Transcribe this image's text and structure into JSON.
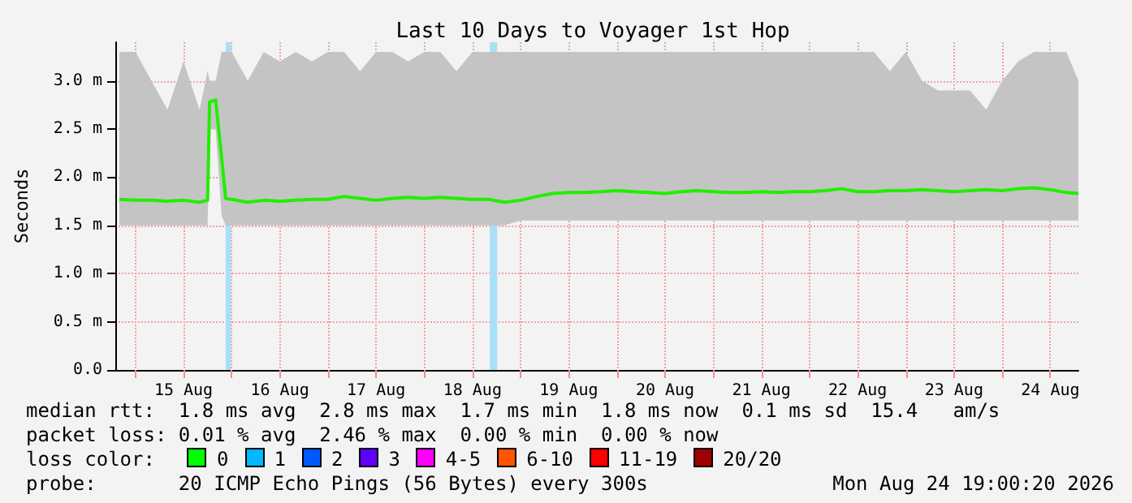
{
  "chart_data": {
    "type": "line",
    "title": "Last 10 Days to Voyager 1st Hop",
    "ylabel": "Seconds",
    "xlim": [
      "2026-08-14T19:00",
      "2026-08-24T19:00"
    ],
    "xticks": [
      {
        "value": "2026-08-15T00:00",
        "label": null
      },
      {
        "value": "2026-08-15T12:00",
        "label": "15 Aug"
      },
      {
        "value": "2026-08-16T00:00",
        "label": null
      },
      {
        "value": "2026-08-16T12:00",
        "label": "16 Aug"
      },
      {
        "value": "2026-08-17T00:00",
        "label": null
      },
      {
        "value": "2026-08-17T12:00",
        "label": "17 Aug"
      },
      {
        "value": "2026-08-18T00:00",
        "label": null
      },
      {
        "value": "2026-08-18T12:00",
        "label": "18 Aug"
      },
      {
        "value": "2026-08-19T00:00",
        "label": null
      },
      {
        "value": "2026-08-19T12:00",
        "label": "19 Aug"
      },
      {
        "value": "2026-08-20T00:00",
        "label": null
      },
      {
        "value": "2026-08-20T12:00",
        "label": "20 Aug"
      },
      {
        "value": "2026-08-21T00:00",
        "label": null
      },
      {
        "value": "2026-08-21T12:00",
        "label": "21 Aug"
      },
      {
        "value": "2026-08-22T00:00",
        "label": null
      },
      {
        "value": "2026-08-22T12:00",
        "label": "22 Aug"
      },
      {
        "value": "2026-08-23T00:00",
        "label": null
      },
      {
        "value": "2026-08-23T12:00",
        "label": "23 Aug"
      },
      {
        "value": "2026-08-24T00:00",
        "label": null
      },
      {
        "value": "2026-08-24T12:00",
        "label": "24 Aug"
      }
    ],
    "ylim": [
      0,
      3.4
    ],
    "yticks": [
      {
        "value": 0,
        "label": "0.0"
      },
      {
        "value": 0.5,
        "label": "0.5 m"
      },
      {
        "value": 1,
        "label": "1.0 m"
      },
      {
        "value": 1.5,
        "label": "1.5 m"
      },
      {
        "value": 2,
        "label": "2.0 m"
      },
      {
        "value": 2.5,
        "label": "2.5 m"
      },
      {
        "value": 3,
        "label": "3.0 m"
      }
    ],
    "grid": true,
    "marker": "none",
    "line_style": "solid",
    "series": [
      {
        "color": "#22ee00",
        "x": [
          "2026-08-14T20:00",
          "2026-08-15T00:00",
          "2026-08-15T04:00",
          "2026-08-15T08:00",
          "2026-08-15T12:00",
          "2026-08-15T16:00",
          "2026-08-15T18:00",
          "2026-08-15T18:30",
          "2026-08-15T20:00",
          "2026-08-15T21:30",
          "2026-08-15T22:30",
          "2026-08-16T00:00",
          "2026-08-16T04:00",
          "2026-08-16T08:00",
          "2026-08-16T12:00",
          "2026-08-16T16:00",
          "2026-08-16T20:00",
          "2026-08-17T00:00",
          "2026-08-17T04:00",
          "2026-08-17T08:00",
          "2026-08-17T12:00",
          "2026-08-17T16:00",
          "2026-08-17T20:00",
          "2026-08-18T00:00",
          "2026-08-18T04:00",
          "2026-08-18T08:00",
          "2026-08-18T12:00",
          "2026-08-18T16:00",
          "2026-08-18T20:00",
          "2026-08-19T00:00",
          "2026-08-19T04:00",
          "2026-08-19T08:00",
          "2026-08-19T12:00",
          "2026-08-19T16:00",
          "2026-08-19T20:00",
          "2026-08-20T00:00",
          "2026-08-20T04:00",
          "2026-08-20T08:00",
          "2026-08-20T12:00",
          "2026-08-20T16:00",
          "2026-08-20T20:00",
          "2026-08-21T00:00",
          "2026-08-21T04:00",
          "2026-08-21T08:00",
          "2026-08-21T12:00",
          "2026-08-21T16:00",
          "2026-08-21T20:00",
          "2026-08-22T00:00",
          "2026-08-22T04:00",
          "2026-08-22T08:00",
          "2026-08-22T12:00",
          "2026-08-22T16:00",
          "2026-08-22T20:00",
          "2026-08-23T00:00",
          "2026-08-23T04:00",
          "2026-08-23T08:00",
          "2026-08-23T12:00",
          "2026-08-23T16:00",
          "2026-08-23T20:00",
          "2026-08-24T00:00",
          "2026-08-24T04:00",
          "2026-08-24T08:00",
          "2026-08-24T12:00",
          "2026-08-24T16:00",
          "2026-08-24T19:00"
        ],
        "values": [
          1.77,
          1.76,
          1.76,
          1.75,
          1.76,
          1.74,
          1.76,
          2.78,
          2.8,
          2.2,
          1.78,
          1.77,
          1.74,
          1.76,
          1.75,
          1.76,
          1.77,
          1.77,
          1.8,
          1.78,
          1.76,
          1.78,
          1.79,
          1.78,
          1.79,
          1.78,
          1.77,
          1.77,
          1.74,
          1.76,
          1.8,
          1.83,
          1.84,
          1.84,
          1.85,
          1.86,
          1.85,
          1.84,
          1.83,
          1.85,
          1.86,
          1.85,
          1.84,
          1.84,
          1.85,
          1.84,
          1.85,
          1.85,
          1.86,
          1.88,
          1.85,
          1.85,
          1.86,
          1.86,
          1.87,
          1.86,
          1.85,
          1.86,
          1.87,
          1.86,
          1.88,
          1.89,
          1.87,
          1.84,
          1.83
        ],
        "lower": [
          1.5,
          1.5,
          1.5,
          1.5,
          1.5,
          1.5,
          1.5,
          2.5,
          2.5,
          1.6,
          1.5,
          1.5,
          1.5,
          1.5,
          1.5,
          1.5,
          1.5,
          1.5,
          1.5,
          1.5,
          1.5,
          1.5,
          1.5,
          1.5,
          1.5,
          1.5,
          1.5,
          1.5,
          1.5,
          1.55,
          1.55,
          1.55,
          1.55,
          1.55,
          1.55,
          1.55,
          1.55,
          1.55,
          1.55,
          1.55,
          1.55,
          1.55,
          1.55,
          1.55,
          1.55,
          1.55,
          1.55,
          1.55,
          1.55,
          1.55,
          1.55,
          1.55,
          1.55,
          1.55,
          1.55,
          1.55,
          1.55,
          1.55,
          1.55,
          1.55,
          1.55,
          1.55,
          1.55,
          1.55,
          1.55
        ],
        "upper": [
          3.3,
          3.3,
          3.0,
          2.7,
          3.2,
          2.7,
          3.1,
          3.0,
          3.0,
          3.3,
          3.3,
          3.3,
          3.0,
          3.3,
          3.2,
          3.3,
          3.2,
          3.3,
          3.3,
          3.1,
          3.3,
          3.3,
          3.2,
          3.3,
          3.3,
          3.1,
          3.3,
          3.3,
          3.3,
          3.3,
          3.3,
          3.3,
          3.3,
          3.3,
          3.3,
          3.3,
          3.3,
          3.3,
          3.3,
          3.3,
          3.3,
          3.3,
          3.3,
          3.3,
          3.3,
          3.3,
          3.3,
          3.3,
          3.3,
          3.3,
          3.3,
          3.3,
          3.1,
          3.3,
          3.0,
          2.9,
          2.9,
          2.9,
          2.7,
          3.0,
          3.2,
          3.3,
          3.3,
          3.3,
          3.0
        ]
      }
    ],
    "bands": [
      {
        "axis": "x",
        "from": "2026-08-15T22:30",
        "to": "2026-08-15T23:50",
        "color": "#a8e0f8"
      },
      {
        "axis": "x",
        "from": "2026-08-18T16:20",
        "to": "2026-08-18T18:10",
        "color": "#a8e0f8"
      }
    ],
    "annotations": [
      "median rtt:  1.8 ms avg  2.8 ms max  1.7 ms min  1.8 ms now  0.1 ms sd  15.4   am/s",
      "packet loss: 0.01 % avg  2.46 % max  0.00 % min  0.00 % now",
      "loss color:",
      "0",
      "1",
      "2",
      "3",
      "4-5",
      "6-10",
      "11-19",
      "20/20",
      "probe:       20 ICMP Echo Pings (56 Bytes) every 300s",
      "Mon Aug 24 19:00:20 2026"
    ]
  }
}
